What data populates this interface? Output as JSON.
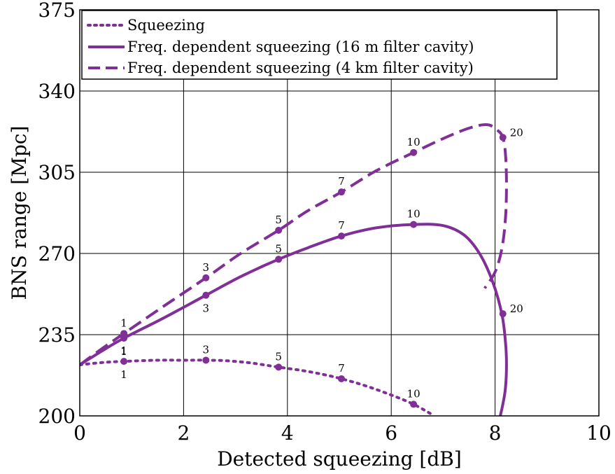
{
  "chart_data": {
    "type": "line",
    "xlabel": "Detected squeezing [dB]",
    "ylabel": "BNS range [Mpc]",
    "xlim": [
      0,
      10
    ],
    "ylim": [
      200,
      375
    ],
    "xticks": [
      0,
      2,
      4,
      6,
      8,
      10
    ],
    "yticks": [
      200,
      235,
      270,
      305,
      340,
      375
    ],
    "grid": true,
    "legend_position": "top-left",
    "color": "#7f2f96",
    "series": [
      {
        "name": "Squeezing",
        "style": "dotted",
        "x": [
          0,
          0.43,
          0.85,
          1.5,
          2.0,
          2.43,
          2.8,
          3.3,
          3.83,
          4.3,
          4.7,
          5.04,
          5.5,
          6.0,
          6.43,
          6.83
        ],
        "y": [
          222,
          223,
          223.5,
          224,
          224,
          224,
          223.8,
          222.8,
          221,
          219.5,
          217.8,
          216,
          213,
          209,
          205,
          200
        ],
        "markers": [
          {
            "x": 0.85,
            "y": 223.5,
            "label": "1",
            "label_pos": "both"
          },
          {
            "x": 2.43,
            "y": 224,
            "label": "3",
            "label_pos": "above"
          },
          {
            "x": 3.83,
            "y": 221,
            "label": "5",
            "label_pos": "above"
          },
          {
            "x": 5.04,
            "y": 216,
            "label": "7",
            "label_pos": "above"
          },
          {
            "x": 6.43,
            "y": 205,
            "label": "10",
            "label_pos": "above"
          }
        ]
      },
      {
        "name": "Freq. dependent squeezing (16 m filter cavity)",
        "style": "solid",
        "x": [
          0,
          0.43,
          0.85,
          1.6,
          2.43,
          3.1,
          3.83,
          4.4,
          5.04,
          5.7,
          6.43,
          7.0,
          7.4,
          7.7,
          7.95,
          8.13,
          8.2,
          8.22,
          8.2,
          8.15,
          8.1
        ],
        "y": [
          222,
          228,
          233.5,
          242,
          252,
          260,
          267.5,
          272.5,
          277.5,
          281,
          282.5,
          282,
          278,
          270,
          258,
          244,
          232,
          222,
          212,
          205,
          200
        ],
        "markers": [
          {
            "x": 0.85,
            "y": 233.5,
            "label": "1",
            "label_pos": "below"
          },
          {
            "x": 2.43,
            "y": 252,
            "label": "3",
            "label_pos": "below"
          },
          {
            "x": 3.83,
            "y": 267.5,
            "label": "5",
            "label_pos": "above"
          },
          {
            "x": 5.04,
            "y": 277.5,
            "label": "7",
            "label_pos": "above"
          },
          {
            "x": 6.43,
            "y": 282.5,
            "label": "10",
            "label_pos": "above"
          },
          {
            "x": 8.15,
            "y": 244,
            "label": "20",
            "label_pos": "right"
          }
        ]
      },
      {
        "name": "Freq. dependent squeezing (4 km filter cavity)",
        "style": "dashed",
        "x": [
          0,
          0.43,
          0.85,
          1.6,
          2.43,
          3.1,
          3.83,
          4.4,
          5.04,
          5.7,
          6.43,
          7.0,
          7.5,
          7.85,
          8.05,
          8.15,
          8.2,
          8.22,
          8.2,
          8.13,
          8.0,
          7.8
        ],
        "y": [
          222,
          229,
          235.5,
          247,
          259.5,
          270,
          280,
          288.5,
          296.5,
          305.5,
          313.5,
          319.5,
          324,
          325.5,
          323,
          320,
          313,
          300,
          285,
          272,
          262,
          255
        ],
        "markers": [
          {
            "x": 0.85,
            "y": 235.5,
            "label": "1",
            "label_pos": "above"
          },
          {
            "x": 2.43,
            "y": 259.5,
            "label": "3",
            "label_pos": "above"
          },
          {
            "x": 3.83,
            "y": 280,
            "label": "5",
            "label_pos": "above"
          },
          {
            "x": 5.04,
            "y": 296.5,
            "label": "7",
            "label_pos": "above"
          },
          {
            "x": 6.43,
            "y": 313.5,
            "label": "10",
            "label_pos": "above"
          },
          {
            "x": 8.15,
            "y": 320,
            "label": "20",
            "label_pos": "right"
          }
        ]
      }
    ]
  }
}
